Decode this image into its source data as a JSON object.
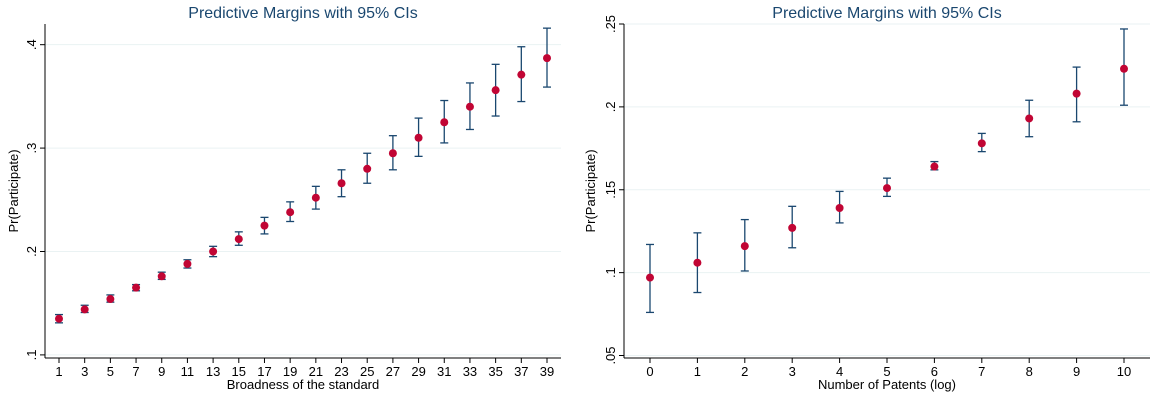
{
  "chart_data": [
    {
      "type": "scatter",
      "title": "Predictive Margins with 95% CIs",
      "xlabel": "Broadness of the standard",
      "ylabel": "Pr(Participate)",
      "xlim": [
        1,
        39
      ],
      "ylim": [
        0.1,
        0.42
      ],
      "xticks": [
        1,
        3,
        5,
        7,
        9,
        11,
        13,
        15,
        17,
        19,
        21,
        23,
        25,
        27,
        29,
        31,
        33,
        35,
        37,
        39
      ],
      "xtick_labels": [
        "1",
        "3",
        "5",
        "7",
        "9",
        "11",
        "13",
        "15",
        "17",
        "19",
        "21",
        "23",
        "25",
        "27",
        "29",
        "31",
        "33",
        "35",
        "37",
        "39"
      ],
      "yticks": [
        0.1,
        0.2,
        0.3,
        0.4
      ],
      "ytick_labels": [
        ".1",
        ".2",
        ".3",
        ".4"
      ],
      "grid": true,
      "series": [
        {
          "x": [
            1,
            3,
            5,
            7,
            9,
            11,
            13,
            15,
            17,
            19,
            21,
            23,
            25,
            27,
            29,
            31,
            33,
            35,
            37,
            39
          ],
          "y": [
            0.135,
            0.144,
            0.154,
            0.165,
            0.176,
            0.188,
            0.2,
            0.212,
            0.225,
            0.238,
            0.252,
            0.266,
            0.28,
            0.295,
            0.31,
            0.325,
            0.34,
            0.356,
            0.371,
            0.387
          ],
          "ci_low": [
            0.131,
            0.141,
            0.151,
            0.162,
            0.173,
            0.184,
            0.195,
            0.206,
            0.217,
            0.229,
            0.241,
            0.253,
            0.266,
            0.279,
            0.292,
            0.305,
            0.318,
            0.331,
            0.345,
            0.359
          ],
          "ci_high": [
            0.139,
            0.148,
            0.158,
            0.168,
            0.18,
            0.192,
            0.205,
            0.219,
            0.233,
            0.248,
            0.263,
            0.279,
            0.295,
            0.312,
            0.329,
            0.346,
            0.363,
            0.381,
            0.398,
            0.416
          ]
        }
      ]
    },
    {
      "type": "scatter",
      "title": "Predictive Margins with 95% CIs",
      "xlabel": "Number of Patents (log)",
      "ylabel": "Pr(Participate)",
      "xlim": [
        0,
        10
      ],
      "ylim": [
        0.05,
        0.25
      ],
      "xticks": [
        0,
        1,
        2,
        3,
        4,
        5,
        6,
        7,
        8,
        9,
        10
      ],
      "xtick_labels": [
        "0",
        "1",
        "2",
        "3",
        "4",
        "5",
        "6",
        "7",
        "8",
        "9",
        "10"
      ],
      "yticks": [
        0.05,
        0.1,
        0.15,
        0.2,
        0.25
      ],
      "ytick_labels": [
        ".05",
        ".1",
        ".15",
        ".2",
        ".25"
      ],
      "grid": true,
      "series": [
        {
          "x": [
            0,
            1,
            2,
            3,
            4,
            5,
            6,
            7,
            8,
            9,
            10
          ],
          "y": [
            0.097,
            0.106,
            0.116,
            0.127,
            0.139,
            0.151,
            0.164,
            0.178,
            0.193,
            0.208,
            0.223
          ],
          "ci_low": [
            0.076,
            0.088,
            0.101,
            0.115,
            0.13,
            0.146,
            0.162,
            0.173,
            0.182,
            0.191,
            0.201
          ],
          "ci_high": [
            0.117,
            0.124,
            0.132,
            0.14,
            0.149,
            0.157,
            0.167,
            0.184,
            0.204,
            0.224,
            0.247
          ]
        }
      ]
    }
  ],
  "colors": {
    "marker": "#c10534",
    "ci_bar": "#1a476f",
    "title": "#1a476f",
    "grid": "#eaf2f3",
    "axis": "#000000"
  }
}
